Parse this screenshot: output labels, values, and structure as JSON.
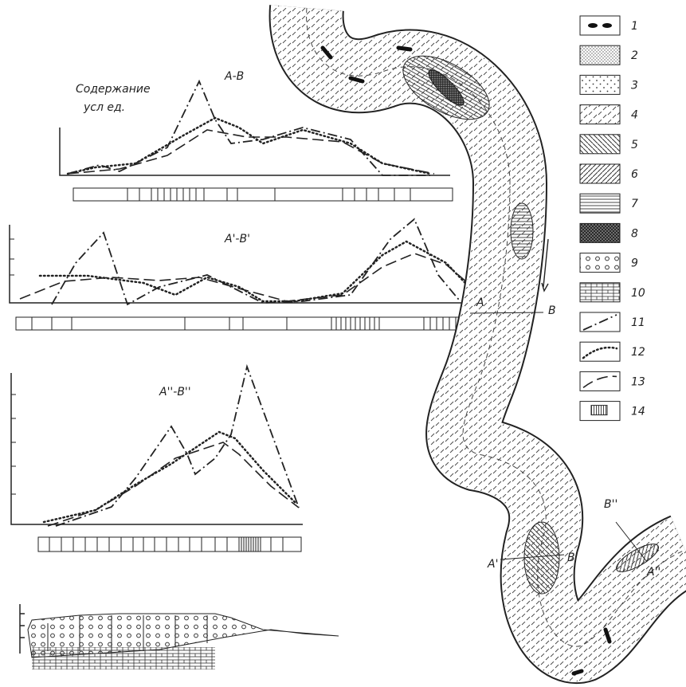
{
  "y_axis_label": {
    "line1": "Содержание",
    "line2": "усл ед."
  },
  "profiles": [
    {
      "label": "A-B"
    },
    {
      "label": "A'-B'"
    },
    {
      "label": "A''-B''"
    }
  ],
  "legend": [
    "1",
    "2",
    "3",
    "4",
    "5",
    "6",
    "7",
    "8",
    "9",
    "10",
    "11",
    "12",
    "13",
    "14"
  ],
  "map_labels": {
    "a": "A",
    "b": "B",
    "a1": "A'",
    "b1": "B'",
    "b2": "B''",
    "a2": "A''"
  }
}
